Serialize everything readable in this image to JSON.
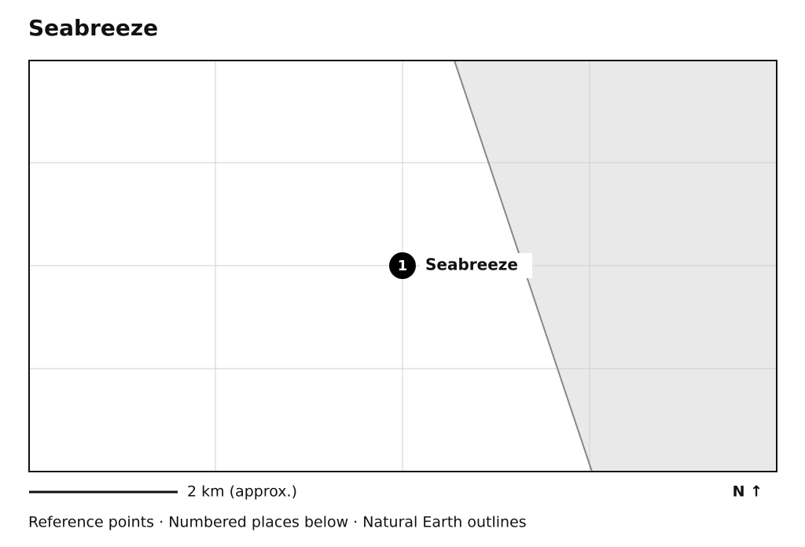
{
  "header": {
    "title": "Seabreeze"
  },
  "markers": [
    {
      "number": "1",
      "label": "Seabreeze"
    }
  ],
  "scale": {
    "label": "2 km (approx.)"
  },
  "north": {
    "label": "N ↑"
  },
  "footer": {
    "text": "Reference points · Numbered places below · Natural Earth outlines"
  }
}
